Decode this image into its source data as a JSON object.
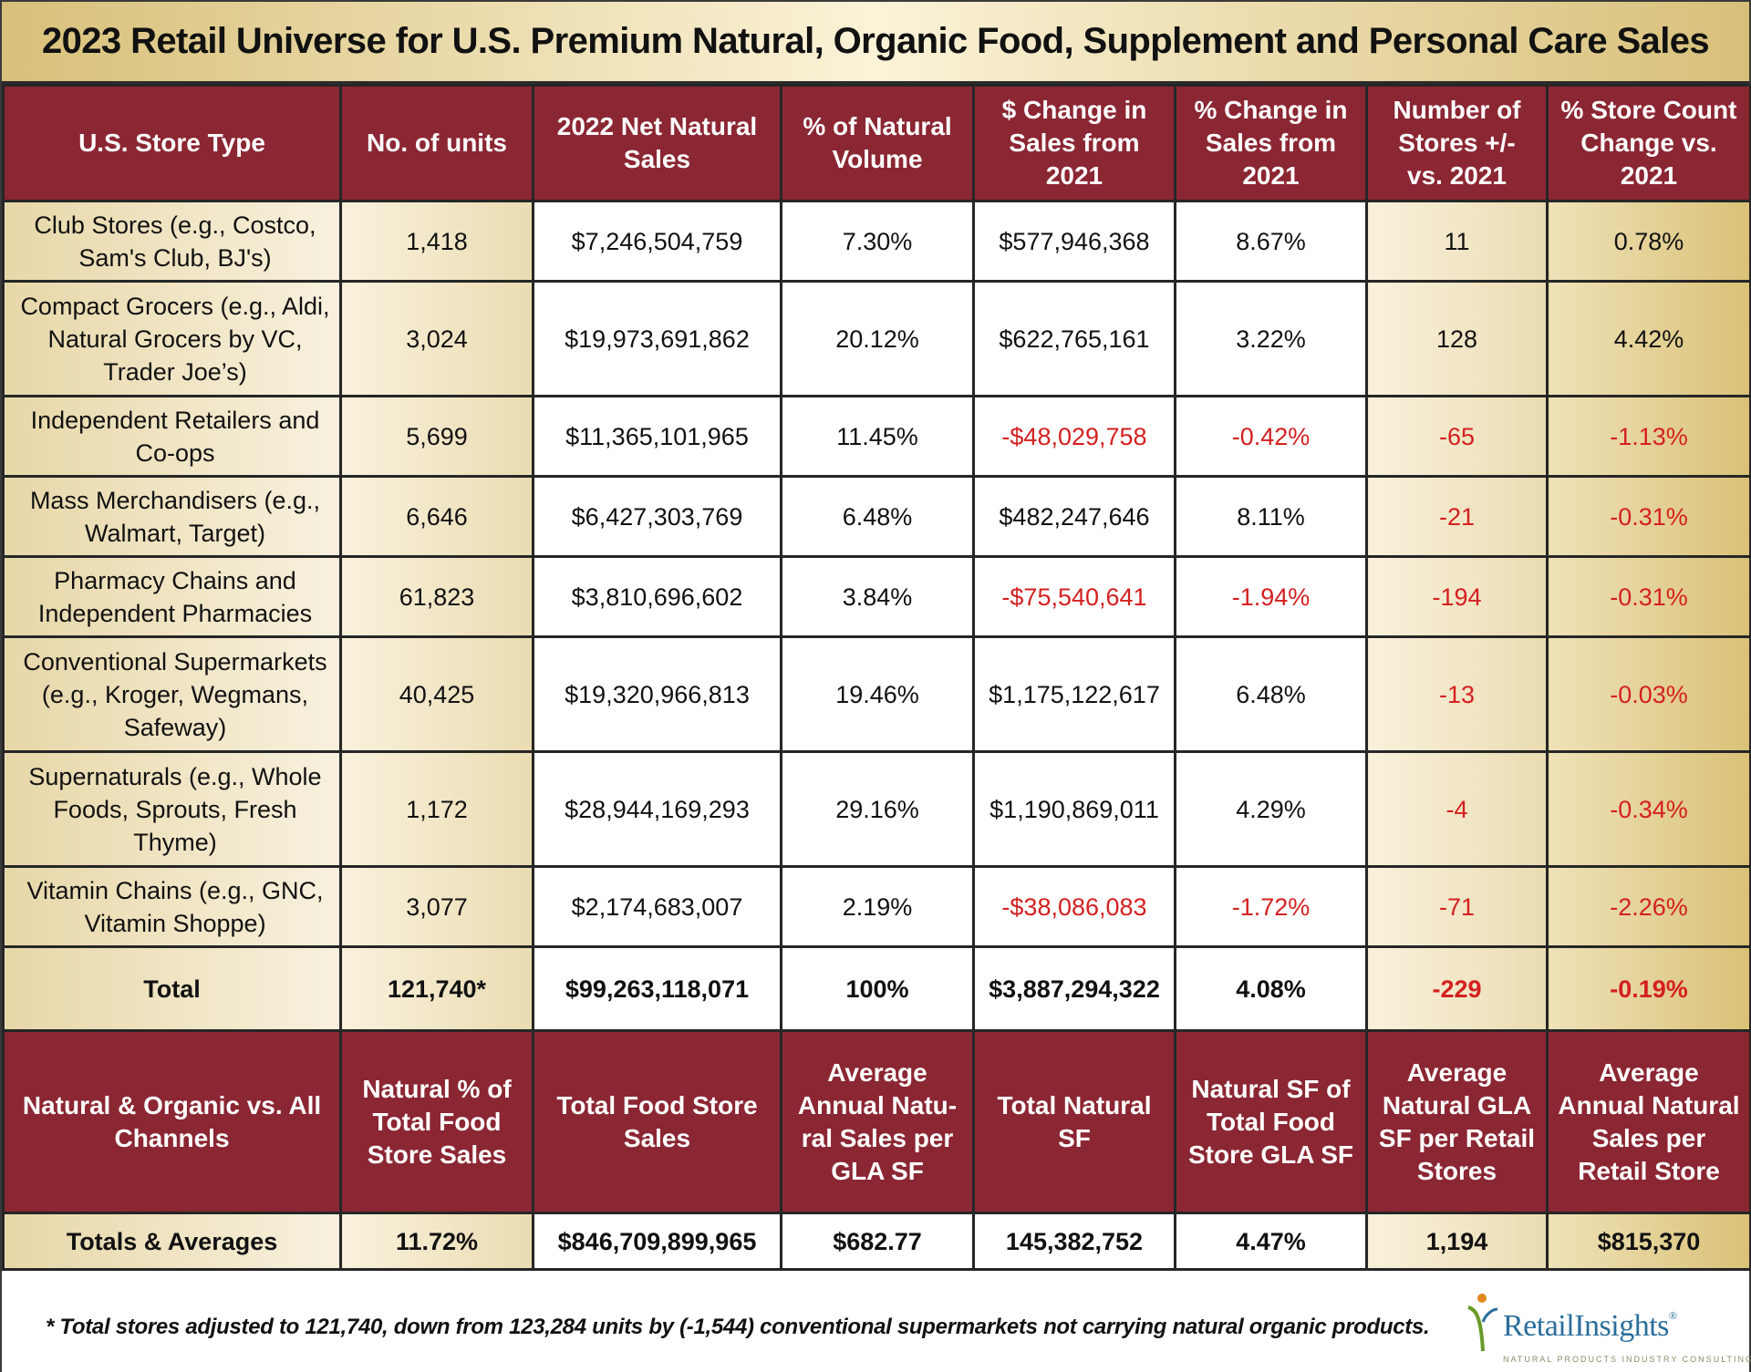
{
  "title": "2023 Retail Universe for U.S. Premium Natural, Organic Food, Supplement and Personal Care Sales",
  "header": [
    "U.S. Store Type",
    "No. of units",
    "2022 Net Natural Sales",
    "% of Natural Volume",
    "$ Change in Sales from 2021",
    "% Change in Sales from 2021",
    "Number of Stores +/- vs. 2021",
    "% Store Count Change vs. 2021"
  ],
  "rows": [
    {
      "store_type": "Club Stores (e.g., Costco, Sam's Club, BJ's)",
      "units": "1,418",
      "net_sales": "$7,246,504,759",
      "pct_volume": "7.30%",
      "dollar_change": "$577,946,368",
      "pct_change": "8.67%",
      "stores_change": "11",
      "pct_store_change": "0.78%"
    },
    {
      "store_type": "Compact Grocers (e.g., Aldi, Natural Grocers by VC, Trader Joe’s)",
      "units": "3,024",
      "net_sales": "$19,973,691,862",
      "pct_volume": "20.12%",
      "dollar_change": "$622,765,161",
      "pct_change": "3.22%",
      "stores_change": "128",
      "pct_store_change": "4.42%"
    },
    {
      "store_type": "Independent Retailers and Co-ops",
      "units": "5,699",
      "net_sales": "$11,365,101,965",
      "pct_volume": "11.45%",
      "dollar_change": "-$48,029,758",
      "pct_change": "-0.42%",
      "stores_change": "-65",
      "pct_store_change": "-1.13%"
    },
    {
      "store_type": "Mass Merchandisers (e.g., Walmart, Target)",
      "units": "6,646",
      "net_sales": "$6,427,303,769",
      "pct_volume": "6.48%",
      "dollar_change": "$482,247,646",
      "pct_change": "8.11%",
      "stores_change": "-21",
      "pct_store_change": "-0.31%"
    },
    {
      "store_type": "Pharmacy Chains and Independent Pharmacies",
      "units": "61,823",
      "net_sales": "$3,810,696,602",
      "pct_volume": "3.84%",
      "dollar_change": "-$75,540,641",
      "pct_change": "-1.94%",
      "stores_change": "-194",
      "pct_store_change": "-0.31%"
    },
    {
      "store_type": "Conventional Supermarkets (e.g., Kroger, Wegmans, Safeway)",
      "units": "40,425",
      "net_sales": "$19,320,966,813",
      "pct_volume": "19.46%",
      "dollar_change": "$1,175,122,617",
      "pct_change": "6.48%",
      "stores_change": "-13",
      "pct_store_change": "-0.03%"
    },
    {
      "store_type": "Supernaturals (e.g., Whole Foods, Sprouts, Fresh Thyme)",
      "units": "1,172",
      "net_sales": "$28,944,169,293",
      "pct_volume": "29.16%",
      "dollar_change": "$1,190,869,011",
      "pct_change": "4.29%",
      "stores_change": "-4",
      "pct_store_change": "-0.34%"
    },
    {
      "store_type": "Vitamin Chains (e.g., GNC, Vitamin Shoppe)",
      "units": "3,077",
      "net_sales": "$2,174,683,007",
      "pct_volume": "2.19%",
      "dollar_change": "-$38,086,083",
      "pct_change": "-1.72%",
      "stores_change": "-71",
      "pct_store_change": "-2.26%"
    }
  ],
  "total": {
    "label": "Total",
    "units": "121,740*",
    "net_sales": "$99,263,118,071",
    "pct_volume": "100%",
    "dollar_change": "$3,887,294,322",
    "pct_change": "4.08%",
    "stores_change": "-229",
    "pct_store_change": "-0.19%"
  },
  "header2": [
    "Natural & Organic vs. All Channels",
    "Natural % of Total Food Store Sales",
    "Total Food Store Sales",
    "Average Annual Natu-ral Sales per GLA SF",
    "Total Natural SF",
    "Natural SF of Total Food Store GLA SF",
    "Average Natural GLA SF per Retail Stores",
    "Average Annual Natural Sales per Retail Store"
  ],
  "totals_averages": [
    "Totals & Averages",
    "11.72%",
    "$846,709,899,965",
    "$682.77",
    "145,382,752",
    "4.47%",
    "1,194",
    "$815,370"
  ],
  "footnote": "* Total stores adjusted to 121,740, down from 123,284 units by (-1,544) conventional supermarkets not carrying natural organic products.",
  "logo": {
    "name": "RetailInsights",
    "tm": "®",
    "tagline": "NATURAL PRODUCTS INDUSTRY CONSULTING"
  },
  "colors": {
    "header_bg": "#8b2633",
    "gold": "#d8c07a",
    "negative": "#d42020",
    "logo_blue": "#2a6e9c"
  }
}
